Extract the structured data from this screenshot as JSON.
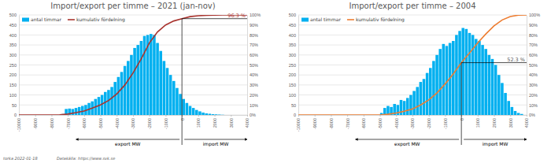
{
  "chart_data": [
    {
      "type": "histogram",
      "title": "Import/export per timme – 2021 (jan-nov)",
      "bins": [
        -7400,
        -7200,
        -7000,
        -6800,
        -6600,
        -6400,
        -6200,
        -6000,
        -5800,
        -5600,
        -5400,
        -5200,
        -5000,
        -4800,
        -4600,
        -4400,
        -4200,
        -4000,
        -3800,
        -3600,
        -3400,
        -3200,
        -3000,
        -2800,
        -2600,
        -2400,
        -2200,
        -2000,
        -1800,
        -1600,
        -1400,
        -1200,
        -1000,
        -800,
        -600,
        -400,
        -200,
        0,
        200,
        400,
        600,
        800,
        1000,
        1200,
        1400,
        1600,
        1800,
        2000,
        2200,
        2400,
        2600
      ],
      "series": [
        {
          "name": "antal timmar",
          "color": "#00B0F0",
          "values": [
            5,
            30,
            32,
            30,
            35,
            40,
            45,
            50,
            60,
            68,
            80,
            90,
            100,
            115,
            125,
            140,
            165,
            190,
            215,
            245,
            270,
            300,
            335,
            350,
            370,
            395,
            400,
            405,
            400,
            360,
            320,
            270,
            235,
            200,
            170,
            135,
            105,
            80,
            60,
            45,
            35,
            25,
            18,
            12,
            8,
            6,
            4,
            3,
            2,
            1
          ]
        },
        {
          "name": "kumulativ fördelning",
          "type": "line",
          "axis": "y2",
          "color": "#A9342F",
          "x": [
            -10000,
            -9500,
            -9000,
            -8500,
            -8000,
            -7500,
            -7000,
            -6500,
            -6000,
            -5500,
            -5000,
            -4500,
            -4000,
            -3500,
            -3000,
            -2500,
            -2000,
            -1500,
            -1000,
            -500,
            0,
            500,
            1000,
            1500,
            2000,
            2500,
            3000,
            3500,
            4000
          ],
          "values": [
            0,
            0,
            0,
            0,
            0,
            0.1,
            0.9,
            2.3,
            4,
            6.8,
            10,
            14.5,
            21,
            30,
            42,
            56,
            72,
            83,
            90,
            94,
            96.3,
            98.3,
            99.2,
            99.7,
            99.9,
            100,
            100,
            100,
            100
          ]
        }
      ],
      "xlim": [
        -10000,
        4000
      ],
      "xticks": [
        -10000,
        -9000,
        -8000,
        -7000,
        -6000,
        -5000,
        -4000,
        -3000,
        -2000,
        -1000,
        0,
        1000,
        2000,
        3000,
        4000
      ],
      "ylim": [
        0,
        500
      ],
      "yticks": [
        0,
        50,
        100,
        150,
        200,
        250,
        300,
        350,
        400,
        450,
        500
      ],
      "y2lim": [
        0,
        100
      ],
      "y2ticks": [
        {
          "value": 0,
          "label": "0%"
        },
        {
          "value": 10,
          "label": "10%"
        },
        {
          "value": 20,
          "label": "20%"
        },
        {
          "value": 30,
          "label": "30%"
        },
        {
          "value": 40,
          "label": "40%"
        },
        {
          "value": 50,
          "label": "50%"
        },
        {
          "value": 60,
          "label": "60%"
        },
        {
          "value": 70,
          "label": "70%"
        },
        {
          "value": 80,
          "label": "80%"
        },
        {
          "value": 90,
          "label": "90%"
        },
        {
          "value": 100,
          "label": "100%"
        }
      ],
      "grid": true,
      "legend": "upper left",
      "annotations": [
        {
          "text": "96.3 %",
          "x": 0,
          "y": 96.3,
          "axis": "y2",
          "color": "#A9342F"
        }
      ],
      "axis_notes": [
        "export MW",
        "import MW"
      ]
    },
    {
      "type": "histogram",
      "title": "Import/export per timme – 2004",
      "bins": [
        -5000,
        -4800,
        -4600,
        -4400,
        -4200,
        -4000,
        -3800,
        -3600,
        -3400,
        -3200,
        -3000,
        -2800,
        -2600,
        -2400,
        -2200,
        -2000,
        -1800,
        -1600,
        -1400,
        -1200,
        -1000,
        -800,
        -600,
        -400,
        -200,
        0,
        200,
        400,
        600,
        800,
        1000,
        1200,
        1400,
        1600,
        1800,
        2000,
        2200,
        2400,
        2600,
        2800,
        3000,
        3200,
        3400,
        3600,
        3800
      ],
      "series": [
        {
          "name": "antal timmar",
          "color": "#00B0F0",
          "values": [
            10,
            35,
            45,
            40,
            55,
            50,
            75,
            70,
            85,
            100,
            120,
            140,
            165,
            180,
            210,
            235,
            270,
            300,
            330,
            355,
            345,
            360,
            370,
            400,
            420,
            435,
            430,
            410,
            400,
            380,
            370,
            350,
            330,
            300,
            280,
            250,
            200,
            160,
            110,
            70,
            40,
            20,
            10,
            5
          ]
        },
        {
          "name": "kumulativ fördelning",
          "type": "line",
          "axis": "y2",
          "color": "#ED7D31",
          "x": [
            -10000,
            -9500,
            -9000,
            -8500,
            -8000,
            -7500,
            -7000,
            -6500,
            -6000,
            -5500,
            -5000,
            -4500,
            -4000,
            -3500,
            -3000,
            -2500,
            -2000,
            -1500,
            -1000,
            -500,
            0,
            500,
            1000,
            1500,
            2000,
            2500,
            3000,
            3500,
            4000
          ],
          "values": [
            0,
            0,
            0,
            0,
            0,
            0,
            0,
            0,
            0,
            0,
            0,
            0.7,
            2,
            3.7,
            6,
            10,
            15,
            22,
            31,
            41,
            52.3,
            62,
            72,
            81,
            89,
            95,
            98.5,
            99.8,
            100
          ]
        }
      ],
      "xlim": [
        -10000,
        4000
      ],
      "xticks": [
        -10000,
        -9000,
        -8000,
        -7000,
        -6000,
        -5000,
        -4000,
        -3000,
        -2000,
        -1000,
        0,
        1000,
        2000,
        3000,
        4000
      ],
      "ylim": [
        0,
        500
      ],
      "yticks": [
        0,
        50,
        100,
        150,
        200,
        250,
        300,
        350,
        400,
        450,
        500
      ],
      "y2lim": [
        0,
        100
      ],
      "y2ticks": [
        {
          "value": 0,
          "label": "0%"
        },
        {
          "value": 10,
          "label": "10%"
        },
        {
          "value": 20,
          "label": "20%"
        },
        {
          "value": 30,
          "label": "30%"
        },
        {
          "value": 40,
          "label": "40%"
        },
        {
          "value": 50,
          "label": "50%"
        },
        {
          "value": 60,
          "label": "60%"
        },
        {
          "value": 70,
          "label": "70%"
        },
        {
          "value": 80,
          "label": "80%"
        },
        {
          "value": 90,
          "label": "90%"
        },
        {
          "value": 100,
          "label": "100%"
        }
      ],
      "grid": true,
      "legend": "upper left",
      "annotations": [
        {
          "text": "52.3 %",
          "x": 0,
          "y": 52.3,
          "axis": "y2",
          "color": "#595959"
        }
      ],
      "axis_notes": [
        "export MW",
        "import MW"
      ]
    }
  ],
  "footer": [
    "torka 2022-01-18",
    "Datakälla: https://www.svk.se"
  ]
}
